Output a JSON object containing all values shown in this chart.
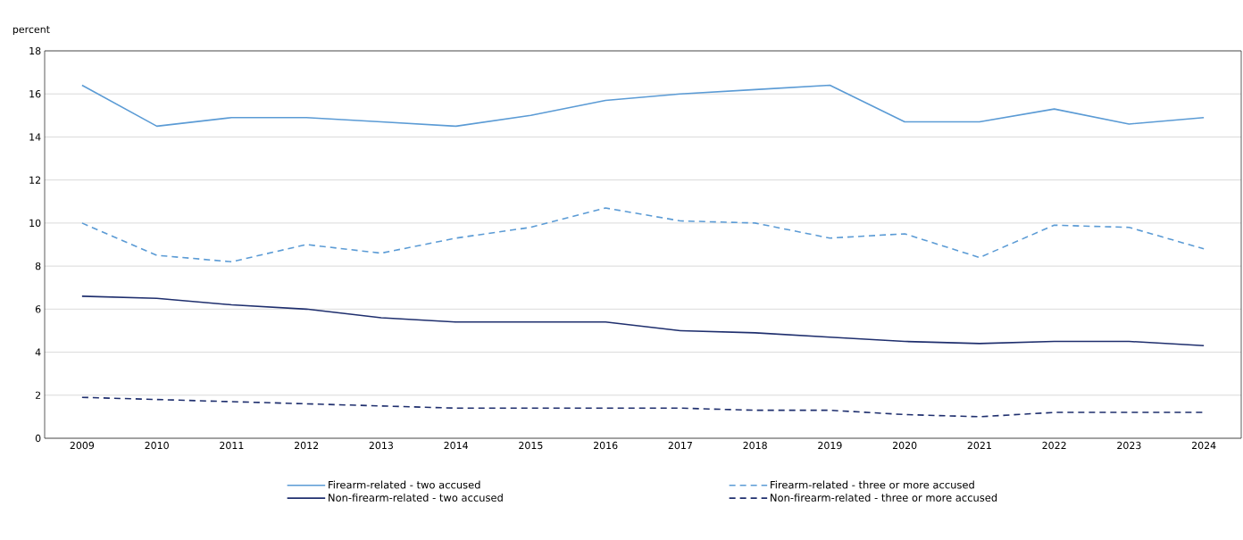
{
  "chart_data": {
    "type": "line",
    "ylabel": "percent",
    "categories": [
      "2009",
      "2010",
      "2011",
      "2012",
      "2013",
      "2014",
      "2015",
      "2016",
      "2017",
      "2018",
      "2019",
      "2020",
      "2021",
      "2022",
      "2023",
      "2024"
    ],
    "series": [
      {
        "name": "Firearm-related - two accused",
        "color": "#5b9bd5",
        "line_style": "solid",
        "values": [
          16.4,
          14.5,
          14.9,
          14.9,
          14.7,
          14.5,
          15.0,
          15.7,
          16.0,
          16.2,
          16.4,
          14.7,
          14.7,
          15.3,
          14.6,
          14.9
        ]
      },
      {
        "name": "Firearm-related - three or more accused",
        "color": "#5b9bd5",
        "line_style": "dashed",
        "values": [
          10.0,
          8.5,
          8.2,
          9.0,
          8.6,
          9.3,
          9.8,
          10.7,
          10.1,
          10.0,
          9.3,
          9.5,
          8.4,
          9.9,
          9.8,
          8.8
        ]
      },
      {
        "name": "Non-firearm-related - two accused",
        "color": "#1f2f6e",
        "line_style": "solid",
        "values": [
          6.6,
          6.5,
          6.2,
          6.0,
          5.6,
          5.4,
          5.4,
          5.4,
          5.0,
          4.9,
          4.7,
          4.5,
          4.4,
          4.5,
          4.5,
          4.3
        ]
      },
      {
        "name": "Non-firearm-related - three or more accused",
        "color": "#1f2f6e",
        "line_style": "dashed",
        "values": [
          1.9,
          1.8,
          1.7,
          1.6,
          1.5,
          1.4,
          1.4,
          1.4,
          1.4,
          1.3,
          1.3,
          1.1,
          1.0,
          1.2,
          1.2,
          1.2
        ]
      }
    ],
    "ylim": [
      0,
      18
    ],
    "yticks": [
      0,
      2,
      4,
      6,
      8,
      10,
      12,
      14,
      16,
      18
    ],
    "grid": "y",
    "legend": "bottom",
    "marker": "none"
  }
}
